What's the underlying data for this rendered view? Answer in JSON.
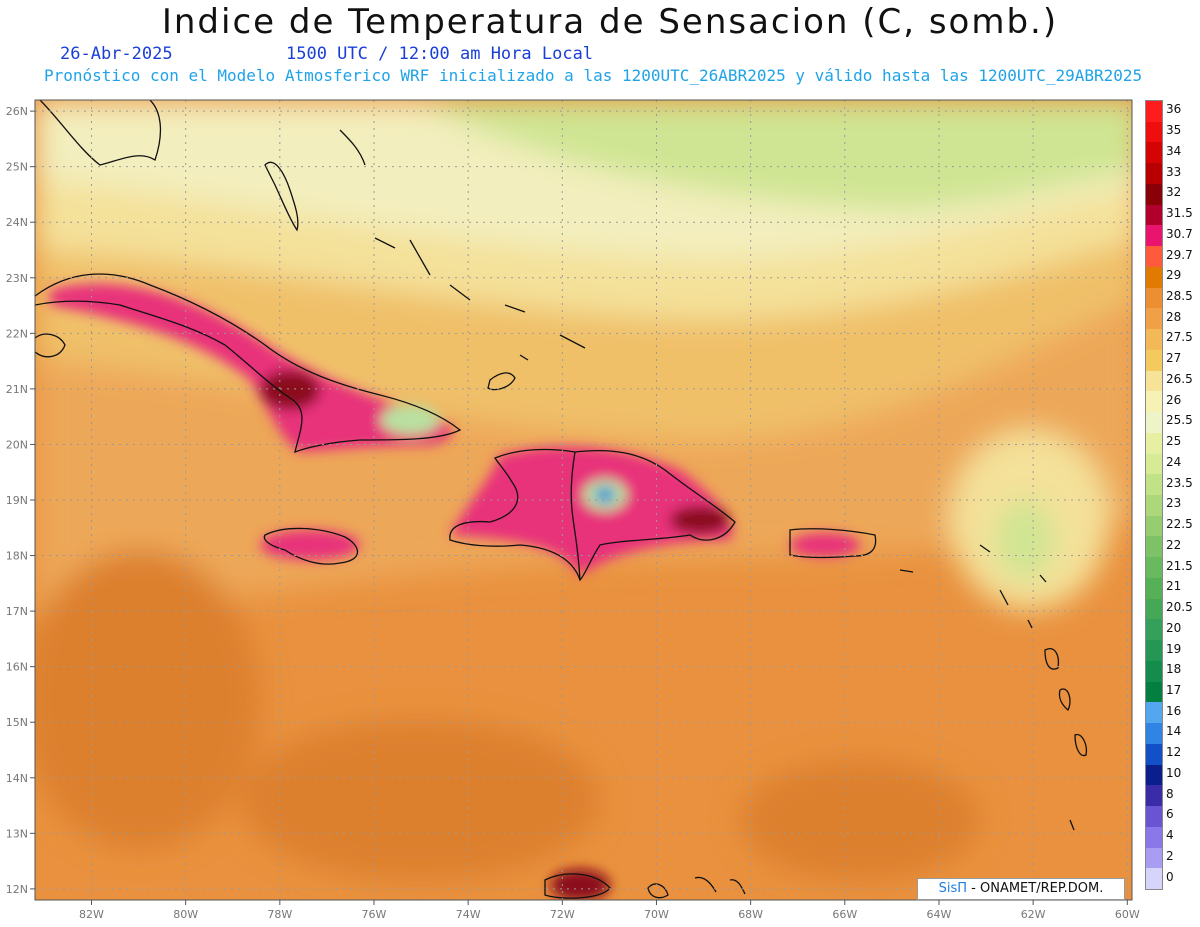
{
  "header": {
    "title": "Indice de Temperatura de Sensacion (C, somb.)",
    "date": "26-Abr-2025",
    "time": "1500 UTC / 12:00 am Hora Local",
    "subtitle": "Pronóstico con el Modelo Atmosferico WRF inicializado a las 1200UTC_26ABR2025 y válido hasta las  1200UTC_29ABR2025"
  },
  "map": {
    "lon_range": [
      -83.2,
      -59.9
    ],
    "lat_range": [
      11.8,
      26.2
    ],
    "lat_ticks": [
      {
        "value": 26,
        "label": "26N"
      },
      {
        "value": 25,
        "label": "25N"
      },
      {
        "value": 24,
        "label": "24N"
      },
      {
        "value": 23,
        "label": "23N"
      },
      {
        "value": 22,
        "label": "22N"
      },
      {
        "value": 21,
        "label": "21N"
      },
      {
        "value": 20,
        "label": "20N"
      },
      {
        "value": 19,
        "label": "19N"
      },
      {
        "value": 18,
        "label": "18N"
      },
      {
        "value": 17,
        "label": "17N"
      },
      {
        "value": 16,
        "label": "16N"
      },
      {
        "value": 15,
        "label": "15N"
      },
      {
        "value": 14,
        "label": "14N"
      },
      {
        "value": 13,
        "label": "13N"
      },
      {
        "value": 12,
        "label": "12N"
      }
    ],
    "lon_ticks": [
      {
        "value": -82,
        "label": "82W"
      },
      {
        "value": -80,
        "label": "80W"
      },
      {
        "value": -78,
        "label": "78W"
      },
      {
        "value": -76,
        "label": "76W"
      },
      {
        "value": -74,
        "label": "74W"
      },
      {
        "value": -72,
        "label": "72W"
      },
      {
        "value": -70,
        "label": "70W"
      },
      {
        "value": -68,
        "label": "68W"
      },
      {
        "value": -66,
        "label": "66W"
      },
      {
        "value": -64,
        "label": "64W"
      },
      {
        "value": -62,
        "label": "62W"
      },
      {
        "value": -60,
        "label": "60W"
      }
    ],
    "grid": true,
    "colors": {
      "ocean_base": "#e9913e",
      "band_north_green": "#cfe593",
      "band_cream": "#f3eebd",
      "band_yellow": "#f4e19a",
      "band_tan": "#f0c069",
      "band_peach": "#eda758",
      "band_dark_orange": "#dd802f",
      "land_hot": "#e8327a",
      "land_hotter": "#8b0f1e",
      "land_cool": "#b9e0a0",
      "land_cold": "#2a8ed8",
      "coast": "#111111",
      "grid_line": "#9a9a9a",
      "tick_label": "#777777"
    }
  },
  "legend": {
    "bins": [
      {
        "label": "36",
        "color": "#ff1c1c"
      },
      {
        "label": "35",
        "color": "#ee0e0e"
      },
      {
        "label": "34",
        "color": "#d40404"
      },
      {
        "label": "33",
        "color": "#b80000"
      },
      {
        "label": "32",
        "color": "#8a0008"
      },
      {
        "label": "31.5",
        "color": "#b0002b"
      },
      {
        "label": "30.7",
        "color": "#e8146e"
      },
      {
        "label": "29.7",
        "color": "#ff5a3c"
      },
      {
        "label": "29",
        "color": "#e07a00"
      },
      {
        "label": "28.5",
        "color": "#ec8f33"
      },
      {
        "label": "28",
        "color": "#f0a046"
      },
      {
        "label": "27.5",
        "color": "#f3b858"
      },
      {
        "label": "27",
        "color": "#f4c95e"
      },
      {
        "label": "26.5",
        "color": "#f6e397"
      },
      {
        "label": "26",
        "color": "#f6f1b4"
      },
      {
        "label": "25.5",
        "color": "#eff3c8"
      },
      {
        "label": "25",
        "color": "#e6efa2"
      },
      {
        "label": "24",
        "color": "#d7ea95"
      },
      {
        "label": "23.5",
        "color": "#c2e287"
      },
      {
        "label": "23",
        "color": "#acd77b"
      },
      {
        "label": "22.5",
        "color": "#95cd70"
      },
      {
        "label": "22",
        "color": "#7ec267"
      },
      {
        "label": "21.5",
        "color": "#69b95e"
      },
      {
        "label": "21",
        "color": "#55b058"
      },
      {
        "label": "20.5",
        "color": "#44a857"
      },
      {
        "label": "20",
        "color": "#35a05a"
      },
      {
        "label": "19",
        "color": "#259653"
      },
      {
        "label": "18",
        "color": "#148c4b"
      },
      {
        "label": "17",
        "color": "#057f40"
      },
      {
        "label": "16",
        "color": "#54a7ee"
      },
      {
        "label": "14",
        "color": "#2f84e4"
      },
      {
        "label": "12",
        "color": "#1250c8"
      },
      {
        "label": "10",
        "color": "#0a1f8c"
      },
      {
        "label": "8",
        "color": "#3a2ba6"
      },
      {
        "label": "6",
        "color": "#6a54d2"
      },
      {
        "label": "4",
        "color": "#8a78e8"
      },
      {
        "label": "2",
        "color": "#a99cf3"
      },
      {
        "label": "0",
        "color": "#d7d4fb"
      }
    ]
  },
  "credit": {
    "brand": "SisΠ",
    "text": "- ONAMET/REP.DOM."
  }
}
